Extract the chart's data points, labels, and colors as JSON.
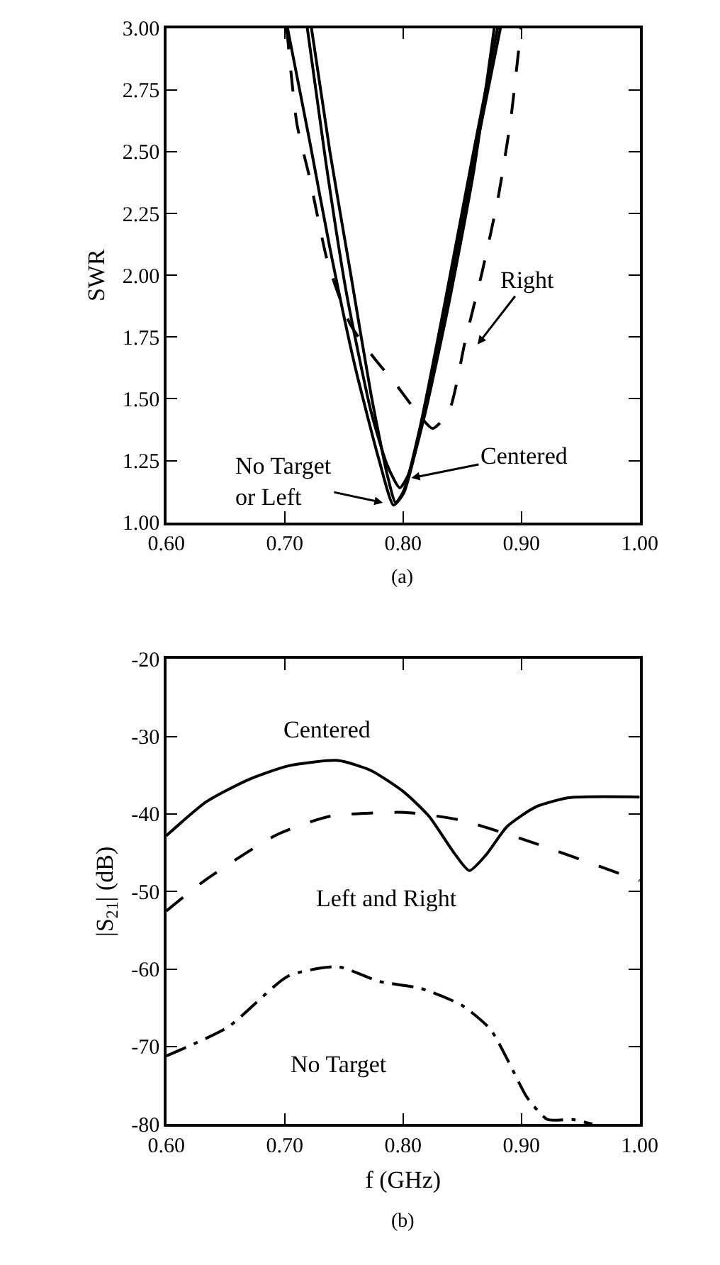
{
  "chart_data": [
    {
      "type": "line",
      "ylabel": "SWR",
      "xlim": [
        0.6,
        1.0
      ],
      "ylim": [
        1.0,
        3.0
      ],
      "xticks": [
        {
          "value": 0.6,
          "label": "0.60"
        },
        {
          "value": 0.7,
          "label": "0.70"
        },
        {
          "value": 0.8,
          "label": "0.80"
        },
        {
          "value": 0.9,
          "label": "0.90"
        },
        {
          "value": 1.0,
          "label": "1.00"
        }
      ],
      "yticks": [
        {
          "value": 1.0,
          "label": "1.00"
        },
        {
          "value": 1.25,
          "label": "1.25"
        },
        {
          "value": 1.5,
          "label": "1.50"
        },
        {
          "value": 1.75,
          "label": "1.75"
        },
        {
          "value": 2.0,
          "label": "2.00"
        },
        {
          "value": 2.25,
          "label": "2.25"
        },
        {
          "value": 2.5,
          "label": "2.50"
        },
        {
          "value": 2.75,
          "label": "2.75"
        },
        {
          "value": 3.0,
          "label": "3.00"
        }
      ],
      "marker": "none",
      "series": [
        {
          "color": "#000000",
          "line_style": "solid",
          "x": [
            0.7024,
            0.7208,
            0.7382,
            0.759,
            0.7799,
            0.792,
            0.8007,
            0.8146,
            0.8354,
            0.8563,
            0.8823
          ],
          "values": [
            3.0,
            2.55,
            2.11,
            1.64,
            1.25,
            1.07,
            1.12,
            1.37,
            1.85,
            2.38,
            3.0
          ]
        },
        {
          "color": "#000000",
          "line_style": "solid",
          "x": [
            0.7226,
            0.7382,
            0.7556,
            0.7729,
            0.7868,
            0.7938,
            0.8007,
            0.8146,
            0.8354,
            0.858,
            0.8799
          ],
          "values": [
            3.0,
            2.5,
            2.01,
            1.52,
            1.19,
            1.08,
            1.13,
            1.39,
            1.89,
            2.46,
            3.0
          ]
        },
        {
          "color": "#000000",
          "line_style": "solid",
          "x": [
            0.7191,
            0.7347,
            0.7521,
            0.7729,
            0.7868,
            0.7972,
            0.8042,
            0.8181,
            0.8389,
            0.8597,
            0.8771
          ],
          "values": [
            3.0,
            2.46,
            1.93,
            1.45,
            1.23,
            1.14,
            1.19,
            1.43,
            1.89,
            2.42,
            3.0
          ]
        },
        {
          "color": "#000000",
          "line_style": "dashed",
          "x": [
            0.7017,
            0.7104,
            0.7208,
            0.7365,
            0.7556,
            0.7764,
            0.7938,
            0.8111,
            0.825,
            0.8389,
            0.8528,
            0.8667,
            0.8806,
            0.891,
            0.8997
          ],
          "values": [
            3.0,
            2.61,
            2.4,
            2.05,
            1.8,
            1.66,
            1.56,
            1.45,
            1.38,
            1.45,
            1.74,
            2.01,
            2.32,
            2.63,
            3.0
          ]
        }
      ],
      "annotations": [
        "Right",
        {
          "text": "Centered",
          "x": 0.807,
          "y": 1.18
        },
        "No Target\nor Left",
        "(a)"
      ]
    },
    {
      "type": "line",
      "xlabel": "f (GHz)",
      "ylabel": "|S$_{21}$| (dB)",
      "xlim": [
        0.6,
        1.0
      ],
      "ylim": [
        -80,
        -20
      ],
      "xticks": [
        {
          "value": 0.6,
          "label": "0.60"
        },
        {
          "value": 0.7,
          "label": "0.70"
        },
        {
          "value": 0.8,
          "label": "0.80"
        },
        {
          "value": 0.9,
          "label": "0.90"
        },
        {
          "value": 1.0,
          "label": "1.00"
        }
      ],
      "yticks": [
        -80,
        -70,
        -60,
        -50,
        -40,
        -30,
        -20
      ],
      "marker": "none",
      "series": [
        {
          "color": "#000000",
          "line_style": "solid",
          "x": [
            0.6,
            0.634,
            0.669,
            0.703,
            0.745,
            0.773,
            0.801,
            0.822,
            0.843,
            0.856,
            0.87,
            0.888,
            0.912,
            0.94,
            1.0
          ],
          "values": [
            -42.8,
            -38.4,
            -35.6,
            -33.8,
            -33.1,
            -34.4,
            -37.2,
            -40.3,
            -45.0,
            -47.3,
            -45.3,
            -41.6,
            -39.1,
            -37.9,
            -37.8
          ]
        },
        {
          "color": "#000000",
          "line_style": "dashed",
          "x": [
            0.6,
            0.634,
            0.693,
            0.738,
            0.801,
            0.849,
            0.908,
            0.985,
            1.0
          ],
          "values": [
            -52.5,
            -48.4,
            -42.7,
            -40.3,
            -39.8,
            -40.8,
            -43.6,
            -47.8,
            -48.6
          ]
        },
        {
          "color": "#000000",
          "line_style": "dashdot",
          "x": [
            0.6,
            0.652,
            0.703,
            0.745,
            0.78,
            0.815,
            0.85,
            0.874,
            0.889,
            0.905,
            0.922,
            0.943,
            0.96
          ],
          "values": [
            -71.2,
            -67.5,
            -60.9,
            -59.7,
            -61.6,
            -62.5,
            -64.7,
            -67.8,
            -71.9,
            -76.6,
            -79.4,
            -79.4,
            -80.0
          ]
        }
      ],
      "annotations": [
        "Centered",
        "Left and Right",
        "No Target",
        "(b)"
      ]
    }
  ]
}
